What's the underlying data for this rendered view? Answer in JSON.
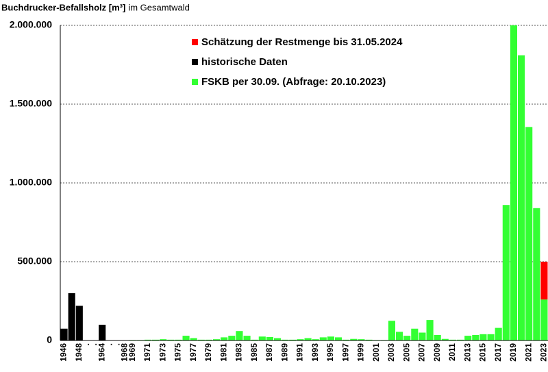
{
  "chart_data": {
    "type": "stacked-bar",
    "title": "Buchdrucker-Befallsholz [m³]",
    "subtitle": "im Gesamtwald",
    "categories": [
      "1946",
      null,
      "1948",
      ".",
      ".",
      "1964",
      ".",
      ".",
      "1968",
      "1969",
      null,
      "1971",
      null,
      "1973",
      null,
      "1975",
      null,
      "1977",
      null,
      "1979",
      null,
      "1981",
      null,
      "1983",
      null,
      "1985",
      null,
      "1987",
      null,
      "1989",
      null,
      "1991",
      null,
      "1993",
      null,
      "1995",
      null,
      "1997",
      null,
      "1999",
      null,
      "2001",
      null,
      "2003",
      null,
      "2005",
      null,
      "2007",
      null,
      "2009",
      null,
      "2011",
      null,
      "2013",
      null,
      "2015",
      null,
      "2017",
      null,
      "2019",
      null,
      "2021",
      null,
      "2023"
    ],
    "series": [
      {
        "name": "Schätzung der Restmenge bis 31.05.2024",
        "color": "#ff0000",
        "values": [
          null,
          null,
          null,
          null,
          null,
          null,
          null,
          null,
          null,
          null,
          null,
          null,
          null,
          null,
          null,
          null,
          null,
          null,
          null,
          null,
          null,
          null,
          null,
          null,
          null,
          null,
          null,
          null,
          null,
          null,
          null,
          null,
          null,
          null,
          null,
          null,
          null,
          null,
          null,
          null,
          null,
          null,
          null,
          null,
          null,
          null,
          null,
          null,
          null,
          null,
          null,
          null,
          null,
          null,
          null,
          null,
          null,
          null,
          null,
          null,
          null,
          null,
          null,
          240000
        ]
      },
      {
        "name": "historische Daten",
        "color": "#000000",
        "values": [
          75000,
          300000,
          220000,
          null,
          null,
          100000,
          null,
          null,
          null,
          null,
          null,
          null,
          null,
          null,
          null,
          null,
          null,
          null,
          null,
          null,
          null,
          null,
          null,
          null,
          null,
          null,
          null,
          null,
          null,
          null,
          null,
          null,
          null,
          null,
          null,
          null,
          null,
          null,
          null,
          null,
          null,
          null,
          null,
          null,
          null,
          null,
          null,
          null,
          null,
          null,
          null,
          null,
          null,
          null,
          null,
          null,
          null,
          null,
          null,
          null,
          null,
          null,
          null,
          null
        ]
      },
      {
        "name": "FSKB per 30.09. (Abfrage: 20.10.2023)",
        "color": "#33ff33",
        "values": [
          null,
          null,
          null,
          null,
          null,
          null,
          null,
          null,
          2000,
          3000,
          3000,
          5000,
          5000,
          8000,
          5000,
          5000,
          30000,
          15000,
          5000,
          5000,
          8000,
          20000,
          30000,
          60000,
          30000,
          5000,
          25000,
          22000,
          15000,
          5000,
          5000,
          8000,
          15000,
          8000,
          20000,
          25000,
          20000,
          5000,
          10000,
          8000,
          5000,
          3000,
          3000,
          125000,
          55000,
          30000,
          75000,
          50000,
          130000,
          35000,
          10000,
          5000,
          5000,
          30000,
          35000,
          40000,
          40000,
          80000,
          860000,
          2000000,
          1810000,
          1355000,
          840000,
          260000
        ]
      }
    ],
    "ylim": [
      0,
      2000000
    ],
    "yticks": [
      0,
      {
        "value": 500000,
        "label": "500.000"
      },
      {
        "value": 1000000,
        "label": "1.000.000"
      },
      {
        "value": 1500000,
        "label": "1.500.000"
      },
      {
        "value": 2000000,
        "label": "2.000.000"
      }
    ],
    "grid": true
  }
}
